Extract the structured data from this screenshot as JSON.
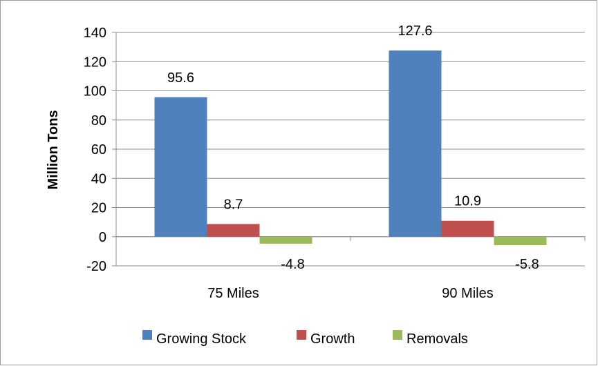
{
  "chart_data": {
    "type": "bar",
    "title": "",
    "xlabel": "",
    "ylabel": "Million Tons",
    "categories": [
      "75 Miles",
      "90 Miles"
    ],
    "series": [
      {
        "name": "Growing Stock",
        "color": "#4f81bd",
        "values": [
          95.6,
          127.6
        ],
        "labels": [
          "95.6",
          "127.6"
        ]
      },
      {
        "name": "Growth",
        "color": "#c0504d",
        "values": [
          8.7,
          10.9
        ],
        "labels": [
          "8.7",
          "10.9"
        ]
      },
      {
        "name": "Removals",
        "color": "#9bbb59",
        "values": [
          -4.8,
          -5.8
        ],
        "labels": [
          "-4.8",
          "-5.8"
        ]
      }
    ],
    "ylim": [
      -20,
      140
    ],
    "yticks": [
      -20,
      0,
      20,
      40,
      60,
      80,
      100,
      120,
      140
    ],
    "ytick_labels": [
      "-20",
      "0",
      "20",
      "40",
      "60",
      "80",
      "100",
      "120",
      "140"
    ],
    "grid": true,
    "legend_position": "bottom"
  }
}
